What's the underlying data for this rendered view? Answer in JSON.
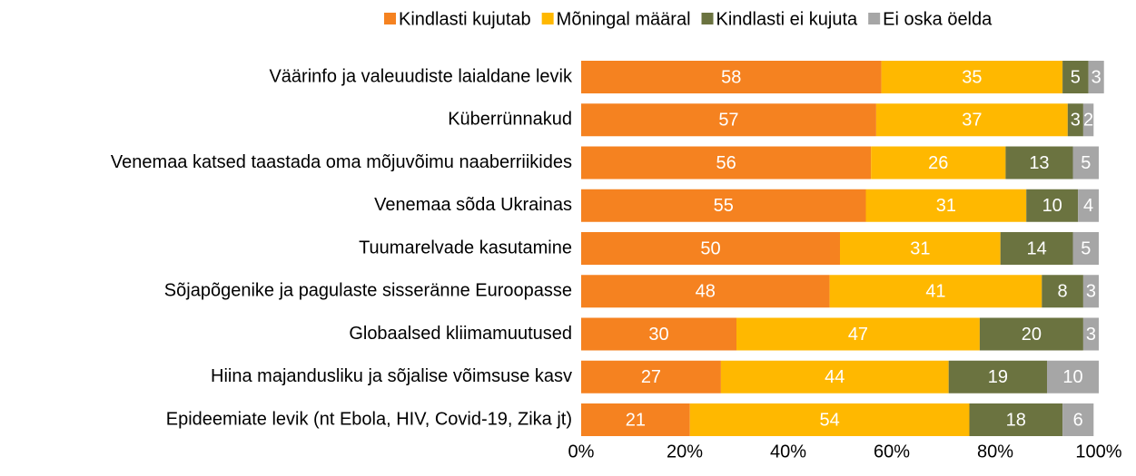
{
  "chart_data": {
    "type": "stacked_bar_horizontal",
    "categories": [
      "Väärinfo ja valeuudiste laialdane levik",
      "Küberrünnakud",
      "Venemaa katsed taastada oma mõjuvõimu naaberriikides",
      "Venemaa sõda Ukrainas",
      "Tuumarelvade kasutamine",
      "Sõjapõgenike ja pagulaste sisseränne Euroopasse",
      "Globaalsed kliimamuutused",
      "Hiina majandusliku ja sõjalise võimsuse kasv",
      "Epideemiate levik (nt Ebola, HIV, Covid-19, Zika jt)"
    ],
    "series": [
      {
        "name": "Kindlasti kujutab",
        "color": "#f58220",
        "values": [
          58,
          57,
          56,
          55,
          50,
          48,
          30,
          27,
          21
        ]
      },
      {
        "name": "Mõningal määral",
        "color": "#ffb800",
        "values": [
          35,
          37,
          26,
          31,
          31,
          41,
          47,
          44,
          54
        ]
      },
      {
        "name": "Kindlasti ei kujuta",
        "color": "#6b7340",
        "values": [
          5,
          3,
          13,
          10,
          14,
          8,
          20,
          19,
          18
        ]
      },
      {
        "name": "Ei oska öelda",
        "color": "#a6a6a6",
        "values": [
          3,
          2,
          5,
          4,
          5,
          3,
          3,
          10,
          6
        ]
      }
    ],
    "xlim": [
      0,
      100
    ],
    "xticks": [
      {
        "value": 0,
        "label": "0%"
      },
      {
        "value": 20,
        "label": "20%"
      },
      {
        "value": 40,
        "label": "40%"
      },
      {
        "value": 60,
        "label": "60%"
      },
      {
        "value": 80,
        "label": "80%"
      },
      {
        "value": 100,
        "label": "100%"
      }
    ],
    "grid": false,
    "legend": "top"
  }
}
